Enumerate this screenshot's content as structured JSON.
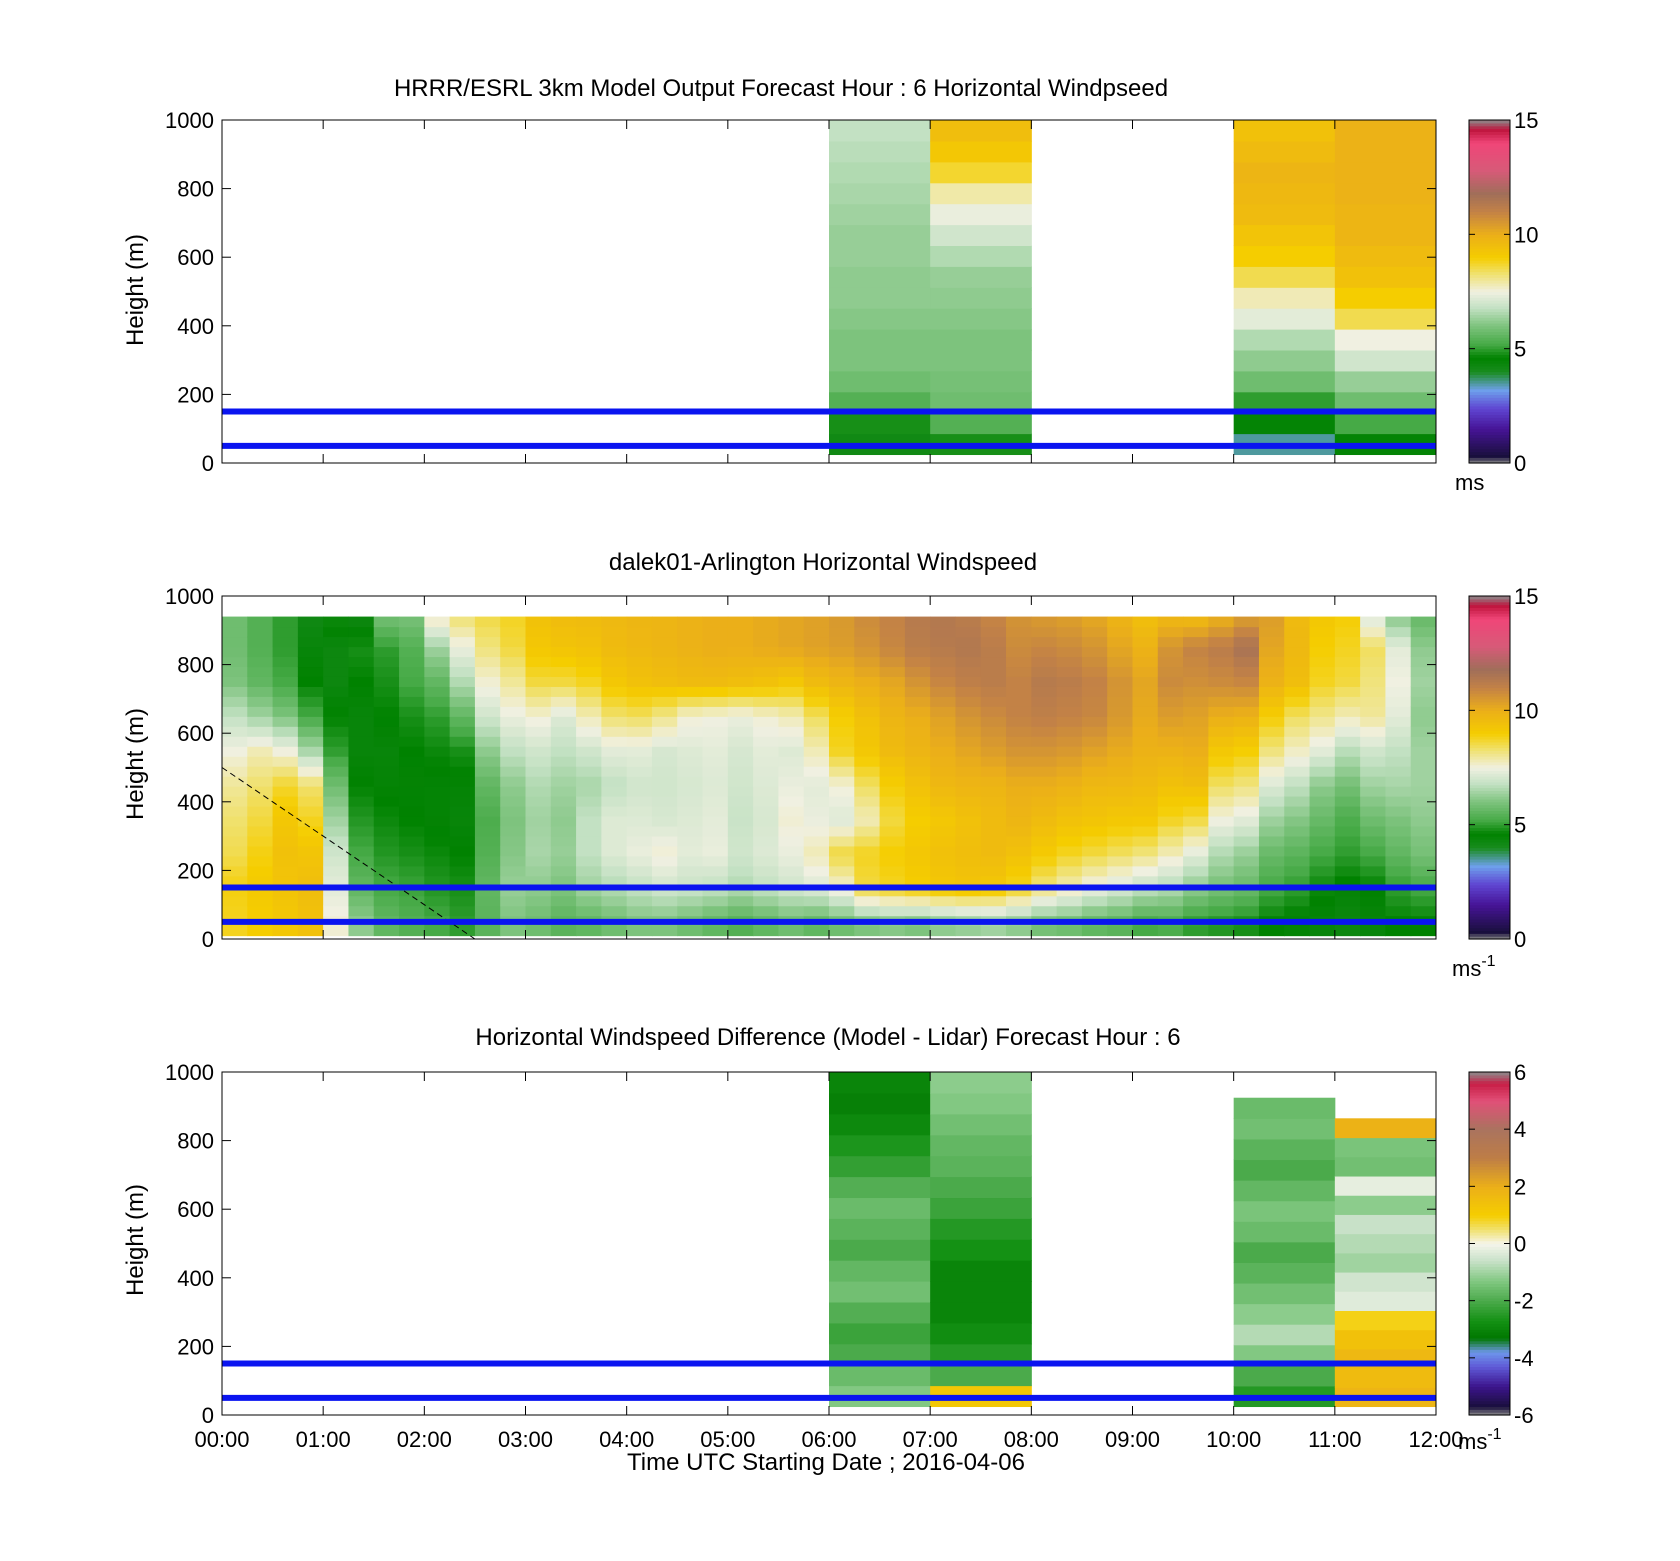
{
  "chart_data": [
    {
      "type": "heatmap",
      "title": "HRRR/ESRL 3km Model Output   Forecast Hour : 6 Horizontal Windpseed",
      "xlabel": "",
      "ylabel": "Height (m)",
      "xlim": [
        "00:00",
        "12:00"
      ],
      "ylim": [
        0,
        1000
      ],
      "yticks": [
        "0",
        "200",
        "400",
        "600",
        "800",
        "1000"
      ],
      "reference_lines_m": [
        50,
        150
      ],
      "colorbar": {
        "min": 0,
        "max": 15,
        "ticks": [
          "0",
          "5",
          "10",
          "15"
        ],
        "unit": "ms"
      },
      "columns": [
        {
          "t_start_h": 6,
          "t_end_h": 7,
          "z_bottom_m": 25,
          "z_top_m": 1000,
          "values_bottom_to_top": [
            4.2,
            4.8,
            5.4,
            5.8,
            6.0,
            6.0,
            6.1,
            6.2,
            6.2,
            6.3,
            6.3,
            6.4,
            6.5,
            6.6,
            6.7,
            6.8
          ]
        },
        {
          "t_start_h": 7,
          "t_end_h": 8,
          "z_bottom_m": 25,
          "z_top_m": 1000,
          "values_bottom_to_top": [
            4.8,
            5.4,
            5.8,
            5.9,
            6.0,
            6.0,
            6.1,
            6.2,
            6.3,
            6.6,
            7.0,
            7.4,
            7.9,
            8.7,
            9.2,
            9.5
          ]
        },
        {
          "t_start_h": 10,
          "t_end_h": 11,
          "z_bottom_m": 25,
          "z_top_m": 1000,
          "values_bottom_to_top": [
            3.5,
            4.5,
            5.0,
            5.8,
            6.2,
            6.6,
            7.3,
            7.8,
            8.5,
            9.0,
            9.3,
            9.6,
            9.7,
            9.8,
            9.6,
            9.4
          ]
        },
        {
          "t_start_h": 11,
          "t_end_h": 12,
          "z_bottom_m": 25,
          "z_top_m": 1000,
          "values_bottom_to_top": [
            4.5,
            5.2,
            5.8,
            6.3,
            7.0,
            7.5,
            8.5,
            9.0,
            9.4,
            9.6,
            9.8,
            9.8,
            9.9,
            9.9,
            9.9,
            9.9
          ]
        }
      ]
    },
    {
      "type": "heatmap",
      "title": "dalek01-Arlington  Horizontal Windspeed",
      "xlabel": "",
      "ylabel": "Height (m)",
      "xlim": [
        "00:00",
        "12:00"
      ],
      "ylim": [
        0,
        1000
      ],
      "yticks": [
        "0",
        "200",
        "400",
        "600",
        "800",
        "1000"
      ],
      "reference_lines_m": [
        50,
        150
      ],
      "colorbar": {
        "min": 0,
        "max": 15,
        "ticks": [
          "0",
          "5",
          "10",
          "15"
        ],
        "unit": "ms",
        "unit_exponent": "-1"
      },
      "time_step_h": 0.25,
      "levels_m": [
        50,
        150,
        250,
        350,
        450,
        550,
        650,
        750,
        850,
        950
      ],
      "profiles_bottom_to_top": [
        [
          8.8,
          8.9,
          8.5,
          8.3,
          8.0,
          7.5,
          6.8,
          6.0,
          5.8,
          5.8
        ],
        [
          9.0,
          9.1,
          8.9,
          8.6,
          8.3,
          7.8,
          6.4,
          5.6,
          5.4,
          5.4
        ],
        [
          9.2,
          9.3,
          9.4,
          9.2,
          8.7,
          7.5,
          6.0,
          5.2,
          5.0,
          5.0
        ],
        [
          9.4,
          9.5,
          9.3,
          8.8,
          8.3,
          6.5,
          5.2,
          4.6,
          4.4,
          4.2
        ],
        [
          7.6,
          7.3,
          7.0,
          6.4,
          5.8,
          5.0,
          4.6,
          4.3,
          4.3,
          4.8
        ],
        [
          6.2,
          5.6,
          5.2,
          4.9,
          4.6,
          4.4,
          4.4,
          4.6,
          4.8,
          4.2
        ],
        [
          5.6,
          5.2,
          4.9,
          4.7,
          4.5,
          4.4,
          4.6,
          4.8,
          5.0,
          6.0
        ],
        [
          5.4,
          5.1,
          4.8,
          4.6,
          4.5,
          4.6,
          4.8,
          5.2,
          5.4,
          6.0
        ],
        [
          5.2,
          4.9,
          4.7,
          4.5,
          4.5,
          4.7,
          5.0,
          5.6,
          6.4,
          8.0
        ],
        [
          5.0,
          4.8,
          4.6,
          4.4,
          4.5,
          4.8,
          5.6,
          6.6,
          7.4,
          8.4
        ],
        [
          5.5,
          5.6,
          5.4,
          5.3,
          5.6,
          6.2,
          7.0,
          7.6,
          8.2,
          8.6
        ],
        [
          6.0,
          6.3,
          6.1,
          6.0,
          6.2,
          6.8,
          7.4,
          8.0,
          8.6,
          8.8
        ],
        [
          5.8,
          6.2,
          6.5,
          6.4,
          6.6,
          7.0,
          7.6,
          8.6,
          9.2,
          9.4
        ],
        [
          5.5,
          6.0,
          6.3,
          6.2,
          6.4,
          6.8,
          7.2,
          8.6,
          9.3,
          9.6
        ],
        [
          5.6,
          6.4,
          6.8,
          6.8,
          6.5,
          7.0,
          7.8,
          8.8,
          9.4,
          9.6
        ],
        [
          5.8,
          6.6,
          7.2,
          7.2,
          6.8,
          7.3,
          8.3,
          9.2,
          9.6,
          9.7
        ],
        [
          6.0,
          6.8,
          7.4,
          7.2,
          7.0,
          7.3,
          8.4,
          9.4,
          9.7,
          9.8
        ],
        [
          6.0,
          7.0,
          7.6,
          7.1,
          7.0,
          7.1,
          8.1,
          9.5,
          9.8,
          9.8
        ],
        [
          5.8,
          6.9,
          7.3,
          7.2,
          7.1,
          7.2,
          7.6,
          9.6,
          9.9,
          9.9
        ],
        [
          5.6,
          6.8,
          7.4,
          7.3,
          7.2,
          7.3,
          7.5,
          9.6,
          10.0,
          10.0
        ],
        [
          5.4,
          6.6,
          7.0,
          6.9,
          7.0,
          7.1,
          7.4,
          9.5,
          10.0,
          10.0
        ],
        [
          5.6,
          6.8,
          7.2,
          7.1,
          7.2,
          7.3,
          7.6,
          9.4,
          10.1,
          10.1
        ],
        [
          5.8,
          7.0,
          7.4,
          7.6,
          7.4,
          7.2,
          7.8,
          9.2,
          10.2,
          10.2
        ],
        [
          5.6,
          7.2,
          7.8,
          7.4,
          7.3,
          7.8,
          8.4,
          9.6,
          10.3,
          10.3
        ],
        [
          5.8,
          7.6,
          8.6,
          7.2,
          7.6,
          8.8,
          9.0,
          9.8,
          10.4,
          10.5
        ],
        [
          6.0,
          8.6,
          8.8,
          7.8,
          8.4,
          9.2,
          9.4,
          10.0,
          10.6,
          10.8
        ],
        [
          6.1,
          8.8,
          9.0,
          8.6,
          9.0,
          9.6,
          9.8,
          10.2,
          10.9,
          11.0
        ],
        [
          6.0,
          9.0,
          9.2,
          9.0,
          9.4,
          9.8,
          10.0,
          10.6,
          11.2,
          11.3
        ],
        [
          6.2,
          9.2,
          9.4,
          9.2,
          9.7,
          10.0,
          10.3,
          10.9,
          11.3,
          11.4
        ],
        [
          6.3,
          9.3,
          9.5,
          9.4,
          9.8,
          10.2,
          10.6,
          11.1,
          11.4,
          11.2
        ],
        [
          6.4,
          9.2,
          9.6,
          9.6,
          9.8,
          10.4,
          10.8,
          11.2,
          11.2,
          10.9
        ],
        [
          6.2,
          8.8,
          9.4,
          9.8,
          10.0,
          10.6,
          11.0,
          11.0,
          10.8,
          10.6
        ],
        [
          5.9,
          8.2,
          9.1,
          9.6,
          10.0,
          10.6,
          11.1,
          11.3,
          10.9,
          10.4
        ],
        [
          5.8,
          7.8,
          8.8,
          9.4,
          9.9,
          10.5,
          11.0,
          11.2,
          10.8,
          10.3
        ],
        [
          5.6,
          7.4,
          8.6,
          9.3,
          9.7,
          10.3,
          10.9,
          11.0,
          10.6,
          10.1
        ],
        [
          5.5,
          7.1,
          8.4,
          9.2,
          9.7,
          10.1,
          10.5,
          10.6,
          10.2,
          9.8
        ],
        [
          5.2,
          6.8,
          8.2,
          9.2,
          9.6,
          9.9,
          10.1,
          10.2,
          9.9,
          9.4
        ],
        [
          5.3,
          6.6,
          7.8,
          8.8,
          9.4,
          9.9,
          10.4,
          10.8,
          10.6,
          9.6
        ],
        [
          5.0,
          6.2,
          7.3,
          8.6,
          9.5,
          10.0,
          10.3,
          10.7,
          11.0,
          9.4
        ],
        [
          4.9,
          5.9,
          6.6,
          7.5,
          8.4,
          9.2,
          10.0,
          10.8,
          11.2,
          9.8
        ],
        [
          4.8,
          5.7,
          6.3,
          7.3,
          8.2,
          9.0,
          9.9,
          10.9,
          11.6,
          10.2
        ],
        [
          4.6,
          5.2,
          5.7,
          6.4,
          7.2,
          8.2,
          9.0,
          9.9,
          10.2,
          10.4
        ],
        [
          4.5,
          5.0,
          5.5,
          6.1,
          6.8,
          7.7,
          8.4,
          9.5,
          9.7,
          9.6
        ],
        [
          4.4,
          4.7,
          5.2,
          5.7,
          6.2,
          7.3,
          8.1,
          8.8,
          9.0,
          9.2
        ],
        [
          4.3,
          4.5,
          5.0,
          5.3,
          5.9,
          6.7,
          7.8,
          8.6,
          8.8,
          9.0
        ],
        [
          4.4,
          4.6,
          5.2,
          5.8,
          6.4,
          7.0,
          8.0,
          8.2,
          8.4,
          7.0
        ],
        [
          4.6,
          5.0,
          5.6,
          6.0,
          6.5,
          6.8,
          7.3,
          7.5,
          7.3,
          6.0
        ],
        [
          4.6,
          5.2,
          5.9,
          6.2,
          6.4,
          6.4,
          6.2,
          6.4,
          6.2,
          5.6
        ]
      ]
    },
    {
      "type": "heatmap",
      "title": "Horizontal Windspeed Difference (Model - Lidar) Forecast Hour : 6",
      "xlabel": "Time UTC  Starting Date ; 2016-04-06",
      "ylabel": "Height (m)",
      "xlim": [
        "00:00",
        "12:00"
      ],
      "xticks": [
        "00:00",
        "01:00",
        "02:00",
        "03:00",
        "04:00",
        "05:00",
        "06:00",
        "07:00",
        "08:00",
        "09:00",
        "10:00",
        "11:00",
        "12:00"
      ],
      "ylim": [
        0,
        1000
      ],
      "yticks": [
        "0",
        "200",
        "400",
        "600",
        "800",
        "1000"
      ],
      "reference_lines_m": [
        50,
        150
      ],
      "colorbar": {
        "min": -6,
        "max": 6,
        "ticks": [
          "-6",
          "-4",
          "-2",
          "0",
          "2",
          "4",
          "6"
        ],
        "unit": "ms",
        "unit_exponent": "-1"
      },
      "columns": [
        {
          "t_start_h": 6,
          "t_end_h": 7,
          "z_bottom_m": 25,
          "z_top_m": 1000,
          "values_bottom_to_top": [
            -1.3,
            -1.6,
            -2.0,
            -2.2,
            -1.9,
            -1.5,
            -1.7,
            -2.0,
            -1.8,
            -1.6,
            -1.9,
            -2.3,
            -2.6,
            -2.9,
            -3.1,
            -3.0
          ]
        },
        {
          "t_start_h": 7,
          "t_end_h": 8,
          "z_bottom_m": 25,
          "z_top_m": 1000,
          "values_bottom_to_top": [
            1.2,
            -2.0,
            -2.5,
            -2.8,
            -3.0,
            -3.0,
            -3.0,
            -2.7,
            -2.5,
            -2.2,
            -2.0,
            -1.8,
            -1.7,
            -1.5,
            -1.3,
            -1.2
          ]
        },
        {
          "t_start_h": 10,
          "t_end_h": 11,
          "z_bottom_m": 25,
          "z_top_m": 925,
          "values_bottom_to_top": [
            -2.5,
            -2.0,
            -1.3,
            -0.8,
            -1.2,
            -1.5,
            -1.8,
            -2.0,
            -1.6,
            -1.4,
            -1.7,
            -2.0,
            -1.8,
            -1.5,
            -1.6
          ]
        },
        {
          "t_start_h": 11,
          "t_end_h": 12,
          "z_bottom_m": 25,
          "z_top_m": 865,
          "values_bottom_to_top": [
            1.8,
            1.6,
            1.7,
            1.4,
            0.9,
            -0.3,
            -0.5,
            -1.0,
            -0.8,
            -0.6,
            -1.2,
            -0.2,
            -1.5,
            -1.4,
            1.9
          ]
        }
      ]
    }
  ]
}
